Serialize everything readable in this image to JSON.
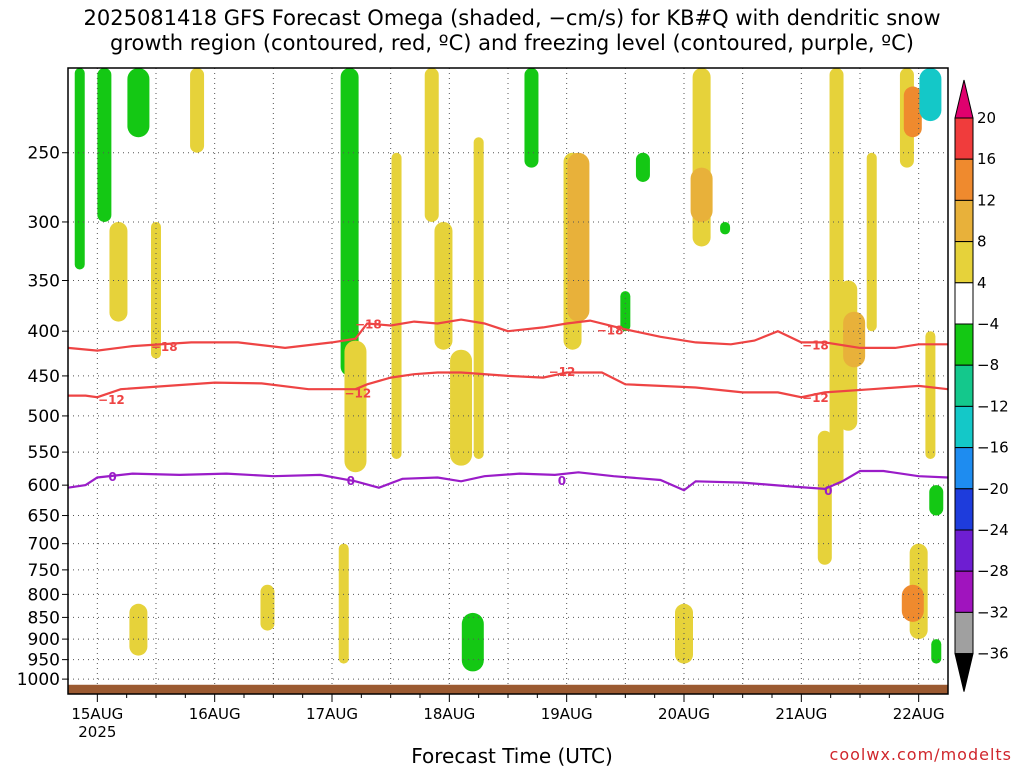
{
  "title": {
    "line1": "2025081418 GFS Forecast Omega (shaded, −cm/s) for KB#Q with dendritic snow",
    "line2": "growth region (contoured, red, ºC) and freezing level (contoured, purple, ºC)"
  },
  "credit": "coolwx.com/modelts",
  "chart_data": {
    "type": "heatmap",
    "xlabel": "Forecast Time (UTC)",
    "ylabel": "",
    "x_ticks": [
      {
        "label": "15AUG",
        "sub": "2025",
        "day": 15
      },
      {
        "label": "16AUG",
        "day": 16
      },
      {
        "label": "17AUG",
        "day": 17
      },
      {
        "label": "18AUG",
        "day": 18
      },
      {
        "label": "19AUG",
        "day": 19
      },
      {
        "label": "20AUG",
        "day": 20
      },
      {
        "label": "21AUG",
        "day": 21
      },
      {
        "label": "22AUG",
        "day": 22
      }
    ],
    "xlim": [
      "2025-08-14 18Z",
      "2025-08-22 06Z"
    ],
    "y_scale": "log",
    "ylim_hPa": [
      1040,
      200
    ],
    "y_ticks": [
      250,
      300,
      350,
      400,
      450,
      500,
      550,
      600,
      650,
      700,
      750,
      800,
      850,
      900,
      950,
      1000
    ],
    "grid": true,
    "colorbar": {
      "labels": [
        20,
        16,
        12,
        8,
        4,
        -4,
        -8,
        -12,
        -16,
        -20,
        -24,
        -28,
        -32,
        -36
      ],
      "bins": [
        {
          "from": 20,
          "to": null,
          "color": "#e0006e"
        },
        {
          "from": 16,
          "to": 20,
          "color": "#f03c3c"
        },
        {
          "from": 12,
          "to": 16,
          "color": "#ef8a2e"
        },
        {
          "from": 8,
          "to": 12,
          "color": "#e8b13a"
        },
        {
          "from": 4,
          "to": 8,
          "color": "#e6d23a"
        },
        {
          "from": -4,
          "to": 4,
          "color": "#ffffff"
        },
        {
          "from": -8,
          "to": -4,
          "color": "#14c814"
        },
        {
          "from": -12,
          "to": -8,
          "color": "#14c88c"
        },
        {
          "from": -16,
          "to": -12,
          "color": "#14c8c8"
        },
        {
          "from": -20,
          "to": -16,
          "color": "#1e8cf0"
        },
        {
          "from": -24,
          "to": -20,
          "color": "#1e3cdc"
        },
        {
          "from": -28,
          "to": -24,
          "color": "#6e1ed2"
        },
        {
          "from": -32,
          "to": -28,
          "color": "#a014be"
        },
        {
          "from": -36,
          "to": -32,
          "color": "#a0a0a0"
        },
        {
          "from": null,
          "to": -36,
          "color": "#000000"
        }
      ]
    },
    "contours": [
      {
        "level": -18,
        "color": "#ee4444",
        "points": [
          [
            14.75,
            418
          ],
          [
            15.0,
            421
          ],
          [
            15.3,
            416
          ],
          [
            15.8,
            412
          ],
          [
            16.2,
            412
          ],
          [
            16.6,
            418
          ],
          [
            17.0,
            412
          ],
          [
            17.2,
            408
          ],
          [
            17.3,
            392
          ],
          [
            17.5,
            394
          ],
          [
            17.7,
            390
          ],
          [
            17.9,
            392
          ],
          [
            18.1,
            388
          ],
          [
            18.3,
            392
          ],
          [
            18.5,
            400
          ],
          [
            18.8,
            396
          ],
          [
            19.0,
            392
          ],
          [
            19.2,
            389
          ],
          [
            19.5,
            398
          ],
          [
            19.8,
            406
          ],
          [
            20.1,
            412
          ],
          [
            20.4,
            414
          ],
          [
            20.6,
            410
          ],
          [
            20.8,
            400
          ],
          [
            21.0,
            412
          ],
          [
            21.2,
            412
          ],
          [
            21.5,
            418
          ],
          [
            21.8,
            418
          ],
          [
            22.0,
            414
          ],
          [
            22.25,
            414
          ]
        ]
      },
      {
        "level": -12,
        "color": "#ee4444",
        "points": [
          [
            14.75,
            474
          ],
          [
            14.9,
            474
          ],
          [
            15.0,
            476
          ],
          [
            15.2,
            466
          ],
          [
            15.6,
            462
          ],
          [
            16.0,
            458
          ],
          [
            16.4,
            459
          ],
          [
            16.8,
            466
          ],
          [
            17.2,
            466
          ],
          [
            17.3,
            460
          ],
          [
            17.5,
            452
          ],
          [
            17.7,
            448
          ],
          [
            17.9,
            446
          ],
          [
            18.1,
            446
          ],
          [
            18.5,
            450
          ],
          [
            18.8,
            452
          ],
          [
            19.0,
            446
          ],
          [
            19.3,
            446
          ],
          [
            19.5,
            460
          ],
          [
            19.8,
            462
          ],
          [
            20.1,
            464
          ],
          [
            20.5,
            470
          ],
          [
            20.8,
            470
          ],
          [
            21.0,
            476
          ],
          [
            21.2,
            470
          ],
          [
            21.6,
            466
          ],
          [
            22.0,
            462
          ],
          [
            22.25,
            466
          ]
        ]
      },
      {
        "level": 0,
        "color": "#9a1cc8",
        "points": [
          [
            14.75,
            604
          ],
          [
            14.9,
            600
          ],
          [
            15.0,
            588
          ],
          [
            15.3,
            582
          ],
          [
            15.7,
            584
          ],
          [
            16.1,
            582
          ],
          [
            16.5,
            586
          ],
          [
            16.9,
            584
          ],
          [
            17.2,
            594
          ],
          [
            17.4,
            604
          ],
          [
            17.6,
            590
          ],
          [
            17.9,
            588
          ],
          [
            18.1,
            594
          ],
          [
            18.3,
            586
          ],
          [
            18.6,
            582
          ],
          [
            18.9,
            584
          ],
          [
            19.1,
            580
          ],
          [
            19.4,
            586
          ],
          [
            19.8,
            592
          ],
          [
            20.0,
            608
          ],
          [
            20.1,
            594
          ],
          [
            20.5,
            596
          ],
          [
            20.9,
            602
          ],
          [
            21.2,
            606
          ],
          [
            21.35,
            594
          ],
          [
            21.5,
            578
          ],
          [
            21.7,
            578
          ],
          [
            22.0,
            586
          ],
          [
            22.25,
            588
          ]
        ]
      }
    ],
    "contour_labels": [
      {
        "text": "-18",
        "day": 15.57,
        "p": 416,
        "color": "#ee4444"
      },
      {
        "text": "-18",
        "day": 17.31,
        "p": 392,
        "color": "#ee4444"
      },
      {
        "text": "-18",
        "day": 19.37,
        "p": 398,
        "color": "#ee4444"
      },
      {
        "text": "-18",
        "day": 21.12,
        "p": 414,
        "color": "#ee4444"
      },
      {
        "text": "-12",
        "day": 15.12,
        "p": 478,
        "color": "#ee4444"
      },
      {
        "text": "-12",
        "day": 17.22,
        "p": 470,
        "color": "#ee4444"
      },
      {
        "text": "-12",
        "day": 18.96,
        "p": 444,
        "color": "#ee4444"
      },
      {
        "text": "-12",
        "day": 21.12,
        "p": 476,
        "color": "#ee4444"
      },
      {
        "text": "0",
        "day": 15.13,
        "p": 586,
        "color": "#9a1cc8"
      },
      {
        "text": "0",
        "day": 17.16,
        "p": 592,
        "color": "#9a1cc8"
      },
      {
        "text": "0",
        "day": 18.96,
        "p": 592,
        "color": "#9a1cc8"
      },
      {
        "text": "0",
        "day": 21.23,
        "p": 608,
        "color": "#9a1cc8"
      }
    ],
    "shaded_regions": [
      {
        "day": 14.85,
        "p": [
          200,
          340
        ],
        "color": "#14c814"
      },
      {
        "day": 15.06,
        "p": [
          200,
          300
        ],
        "color": "#14c814"
      },
      {
        "day": 15.18,
        "p": [
          300,
          390
        ],
        "color": "#e6d23a"
      },
      {
        "day": 15.35,
        "p": [
          200,
          240
        ],
        "color": "#14c814"
      },
      {
        "day": 15.5,
        "p": [
          300,
          430
        ],
        "color": "#e6d23a"
      },
      {
        "day": 15.85,
        "p": [
          200,
          250
        ],
        "color": "#e6d23a"
      },
      {
        "day": 17.15,
        "p": [
          200,
          450
        ],
        "color": "#14c814"
      },
      {
        "day": 17.2,
        "p": [
          410,
          580
        ],
        "color": "#e6d23a"
      },
      {
        "day": 17.55,
        "p": [
          250,
          560
        ],
        "color": "#e6d23a"
      },
      {
        "day": 17.85,
        "p": [
          200,
          300
        ],
        "color": "#e6d23a"
      },
      {
        "day": 17.95,
        "p": [
          300,
          420
        ],
        "color": "#e6d23a"
      },
      {
        "day": 18.1,
        "p": [
          420,
          570
        ],
        "color": "#e6d23a"
      },
      {
        "day": 18.25,
        "p": [
          240,
          560
        ],
        "color": "#e6d23a"
      },
      {
        "day": 18.7,
        "p": [
          200,
          260
        ],
        "color": "#14c814"
      },
      {
        "day": 19.05,
        "p": [
          250,
          420
        ],
        "color": "#e6d23a"
      },
      {
        "day": 19.1,
        "p": [
          250,
          390
        ],
        "color": "#e8b13a"
      },
      {
        "day": 19.5,
        "p": [
          360,
          400
        ],
        "color": "#14c814"
      },
      {
        "day": 19.65,
        "p": [
          250,
          270
        ],
        "color": "#14c814"
      },
      {
        "day": 20.15,
        "p": [
          200,
          320
        ],
        "color": "#e6d23a"
      },
      {
        "day": 20.15,
        "p": [
          260,
          300
        ],
        "color": "#e8b13a"
      },
      {
        "day": 20.35,
        "p": [
          300,
          310
        ],
        "color": "#14c814"
      },
      {
        "day": 21.3,
        "p": [
          200,
          600
        ],
        "color": "#e6d23a"
      },
      {
        "day": 21.4,
        "p": [
          350,
          520
        ],
        "color": "#e6d23a"
      },
      {
        "day": 21.45,
        "p": [
          380,
          440
        ],
        "color": "#e8b13a"
      },
      {
        "day": 21.6,
        "p": [
          250,
          400
        ],
        "color": "#e6d23a"
      },
      {
        "day": 21.9,
        "p": [
          200,
          260
        ],
        "color": "#e6d23a"
      },
      {
        "day": 21.95,
        "p": [
          210,
          240
        ],
        "color": "#ef8a2e"
      },
      {
        "day": 22.1,
        "p": [
          200,
          230
        ],
        "color": "#14c8c8"
      },
      {
        "day": 22.1,
        "p": [
          400,
          560
        ],
        "color": "#e6d23a"
      },
      {
        "day": 22.15,
        "p": [
          600,
          650
        ],
        "color": "#14c814"
      },
      {
        "day": 22.0,
        "p": [
          700,
          900
        ],
        "color": "#e6d23a"
      },
      {
        "day": 21.95,
        "p": [
          780,
          860
        ],
        "color": "#ef8a2e"
      },
      {
        "day": 22.15,
        "p": [
          900,
          960
        ],
        "color": "#14c814"
      },
      {
        "day": 21.2,
        "p": [
          520,
          740
        ],
        "color": "#e6d23a"
      },
      {
        "day": 20.0,
        "p": [
          820,
          960
        ],
        "color": "#e6d23a"
      },
      {
        "day": 18.2,
        "p": [
          840,
          980
        ],
        "color": "#14c814"
      },
      {
        "day": 17.1,
        "p": [
          700,
          960
        ],
        "color": "#e6d23a"
      },
      {
        "day": 16.45,
        "p": [
          780,
          880
        ],
        "color": "#e6d23a"
      },
      {
        "day": 15.35,
        "p": [
          820,
          940
        ],
        "color": "#e6d23a"
      }
    ],
    "surface": {
      "p": 1015,
      "color": "#9b5a31"
    }
  }
}
